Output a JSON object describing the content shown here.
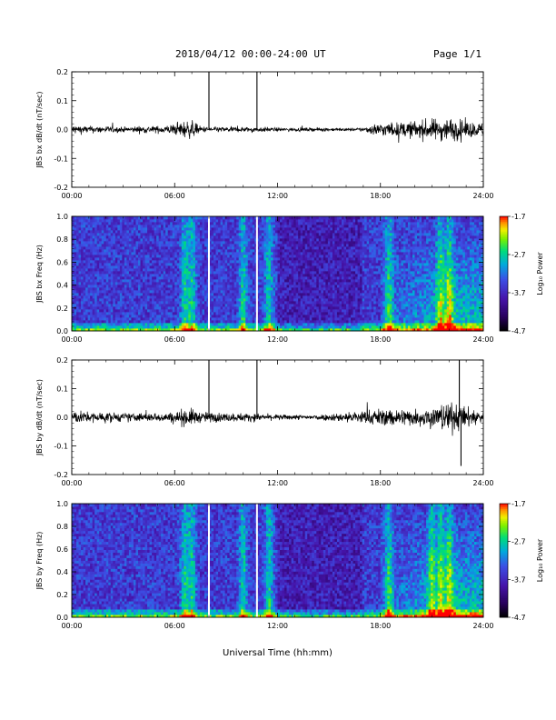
{
  "header": {
    "date_range": "2018/04/12  00:00-24:00 UT",
    "page": "Page 1/1"
  },
  "xlabel": "Universal Time (hh:mm)",
  "x_ticks": [
    "00:00",
    "06:00",
    "12:00",
    "18:00",
    "24:00"
  ],
  "colorbar": {
    "label": "Log₁₀ Power",
    "ticks": [
      "-1.7",
      "-2.7",
      "-3.7",
      "-4.7"
    ],
    "range": [
      -4.7,
      -1.7
    ]
  },
  "chart_data": [
    {
      "type": "line",
      "ylabel": "JBS bx dB/dt (nT/sec)",
      "xlim_hours": [
        0,
        24
      ],
      "ylim": [
        -0.2,
        0.2
      ],
      "y_ticks": [
        "0.2",
        "0.1",
        "0.0",
        "-0.1",
        "-0.2"
      ],
      "envelope": {
        "hours": [
          0,
          1,
          2,
          3,
          4,
          5,
          6,
          6.5,
          7,
          7.5,
          8,
          9,
          10,
          11,
          12,
          13,
          14,
          15,
          16,
          17,
          17.5,
          18,
          19,
          20,
          21,
          22,
          23,
          24
        ],
        "amplitude": [
          0.03,
          0.02,
          0.02,
          0.015,
          0.02,
          0.02,
          0.03,
          0.05,
          0.05,
          0.02,
          0.015,
          0.015,
          0.015,
          0.015,
          0.01,
          0.01,
          0.01,
          0.01,
          0.008,
          0.01,
          0.03,
          0.04,
          0.04,
          0.05,
          0.06,
          0.07,
          0.05,
          0.035
        ]
      },
      "spikes": [
        {
          "hour": 8.0,
          "value": 0.2
        },
        {
          "hour": 10.8,
          "value": 0.2
        }
      ]
    },
    {
      "type": "heatmap",
      "ylabel": "JBS bx Freq (Hz)",
      "xlim_hours": [
        0,
        24
      ],
      "ylim": [
        0.0,
        1.0
      ],
      "y_ticks": [
        "1.0",
        "0.8",
        "0.6",
        "0.4",
        "0.2",
        "0.0"
      ],
      "gaps_hours": [
        8.0,
        10.8
      ],
      "bright_bands_hours": [
        6.6,
        6.8,
        7.0,
        10.0,
        11.5,
        18.5,
        21.5,
        22.0
      ]
    },
    {
      "type": "line",
      "ylabel": "JBS by dB/dt (nT/sec)",
      "xlim_hours": [
        0,
        24
      ],
      "ylim": [
        -0.2,
        0.2
      ],
      "y_ticks": [
        "0.2",
        "0.1",
        "0.0",
        "-0.1",
        "-0.2"
      ],
      "envelope": {
        "hours": [
          0,
          1,
          2,
          3,
          4,
          5,
          6,
          6.5,
          7,
          7.5,
          8,
          9,
          10,
          11,
          12,
          13,
          14,
          15,
          16,
          17,
          18,
          19,
          20,
          21,
          22,
          23,
          24
        ],
        "amplitude": [
          0.04,
          0.03,
          0.03,
          0.025,
          0.025,
          0.025,
          0.03,
          0.05,
          0.05,
          0.03,
          0.03,
          0.025,
          0.025,
          0.02,
          0.015,
          0.015,
          0.015,
          0.02,
          0.03,
          0.04,
          0.05,
          0.05,
          0.05,
          0.06,
          0.09,
          0.06,
          0.04
        ]
      },
      "spikes": [
        {
          "hour": 8.0,
          "value": 0.2
        },
        {
          "hour": 10.8,
          "value": 0.2
        },
        {
          "hour": 22.6,
          "value": 0.2
        },
        {
          "hour": 22.7,
          "value": -0.17
        }
      ]
    },
    {
      "type": "heatmap",
      "ylabel": "JBS by Freq (Hz)",
      "xlim_hours": [
        0,
        24
      ],
      "ylim": [
        0.0,
        1.0
      ],
      "y_ticks": [
        "1.0",
        "0.8",
        "0.6",
        "0.4",
        "0.2",
        "0.0"
      ],
      "gaps_hours": [
        8.0,
        10.8
      ],
      "bright_bands_hours": [
        6.6,
        6.8,
        7.0,
        10.0,
        11.5,
        18.5,
        21.0,
        21.5,
        22.0
      ]
    }
  ]
}
